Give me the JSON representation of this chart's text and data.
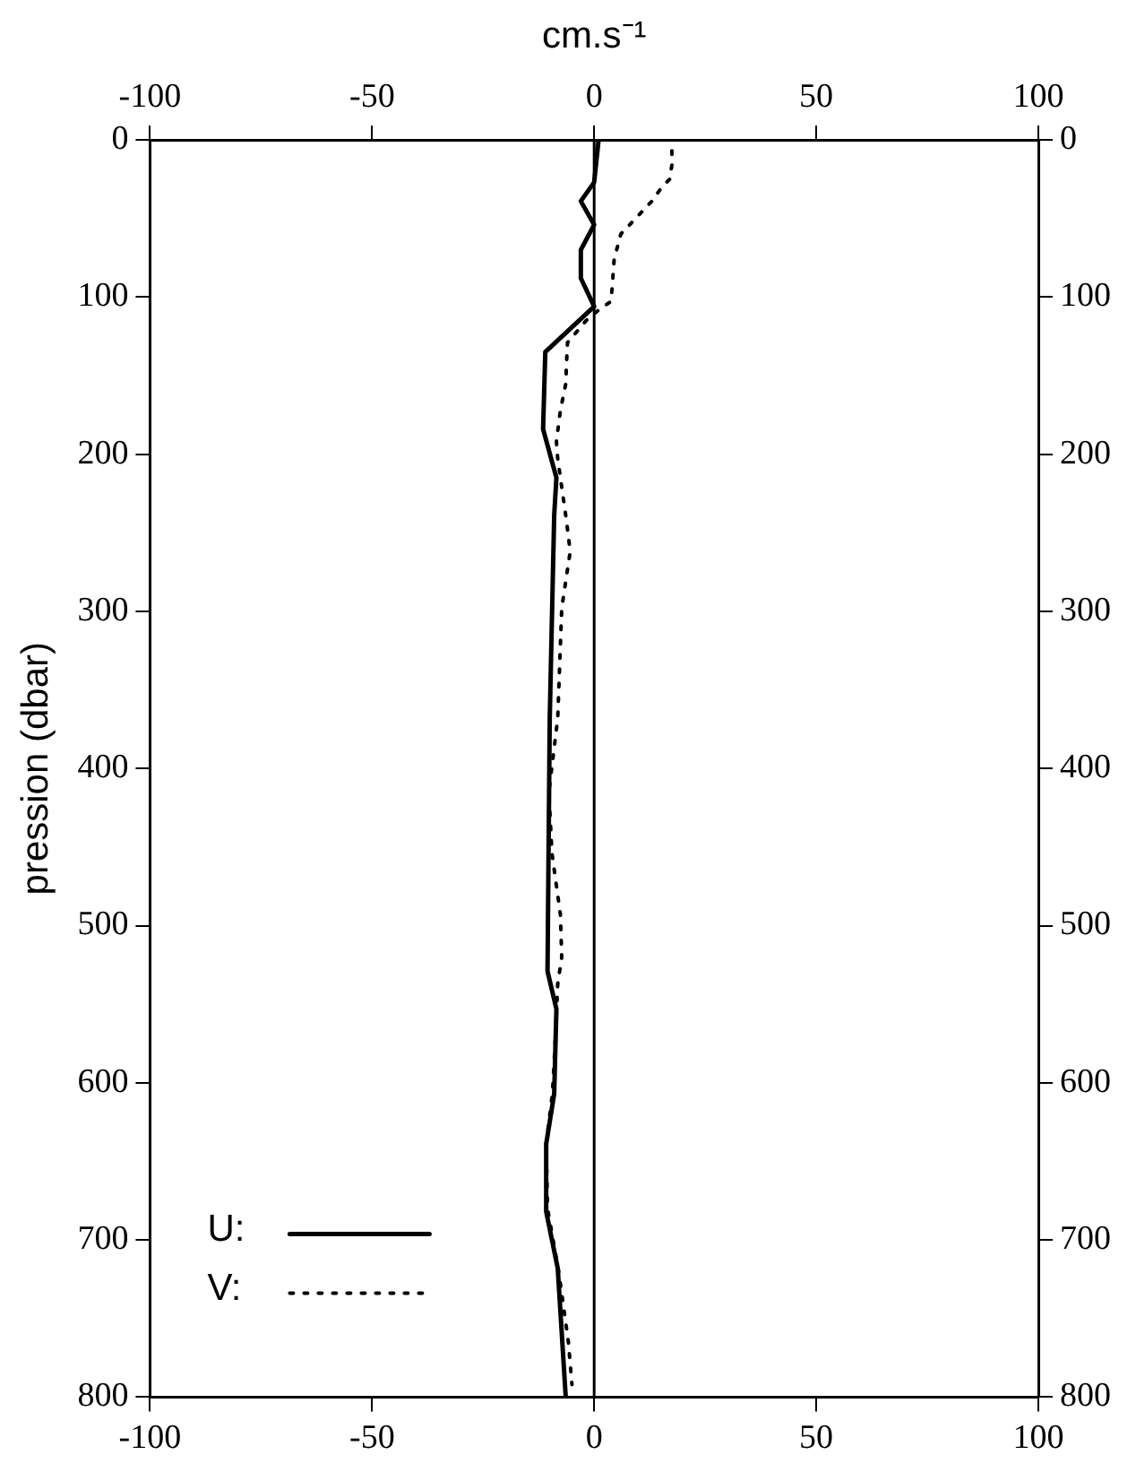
{
  "chart_data": {
    "type": "line",
    "x2label": "cm.s⁻¹",
    "ylabel": "pression (dbar)",
    "xlim": [
      -100,
      100
    ],
    "xticks": [
      -100,
      -50,
      0,
      50,
      100
    ],
    "x2lim": [
      -100,
      100
    ],
    "x2ticks": [
      -100,
      -50,
      0,
      50,
      100
    ],
    "ylim": [
      800,
      0
    ],
    "yticks": [
      0,
      100,
      200,
      300,
      400,
      500,
      600,
      700,
      800
    ],
    "y2lim": [
      800,
      0
    ],
    "y2ticks": [
      0,
      100,
      200,
      300,
      400,
      500,
      600,
      700,
      800
    ],
    "series": [
      {
        "name": "U:",
        "color": "#000000",
        "line_style": "solid",
        "x": [
          1,
          0,
          -3,
          0,
          -3,
          -3,
          0,
          -11,
          -11.5,
          -8.5,
          -9,
          -10,
          -10.5,
          -8.5,
          -9,
          -10.8,
          -10.8,
          -8.2,
          -6.4
        ],
        "values": [
          0,
          27,
          39,
          54,
          70,
          88,
          106,
          135,
          184,
          215,
          239,
          368,
          529,
          553,
          607,
          639,
          682,
          718,
          800
        ]
      },
      {
        "name": "V:",
        "color": "#000000",
        "line_style": "dotted",
        "x": [
          17.5,
          17.5,
          17,
          15,
          13,
          9,
          6,
          4.5,
          4,
          3.7,
          0.7,
          -1.8,
          -6,
          -6.3,
          -6.3,
          -7.6,
          -8.5,
          -8.2,
          -6.2,
          -5.4,
          -7.3,
          -7.9,
          -8.2,
          -10.2,
          -9.5,
          -7.6,
          -7.3,
          -8.2,
          -8.8,
          -9.4,
          -10.8,
          -10.5,
          -8,
          -5.8,
          -5
        ],
        "values": [
          7,
          16,
          25,
          31,
          39,
          51,
          60,
          76,
          96,
          103,
          109,
          115,
          129,
          147,
          154,
          172,
          192,
          203,
          243,
          262,
          298,
          345,
          368,
          415,
          454,
          493,
          520,
          537,
          576,
          607,
          639,
          680,
          720,
          765,
          792
        ]
      }
    ],
    "ref_lines": [
      {
        "axis": "x",
        "value": 0,
        "color": "#000000"
      }
    ],
    "legend": "bottom left",
    "grid": false
  }
}
